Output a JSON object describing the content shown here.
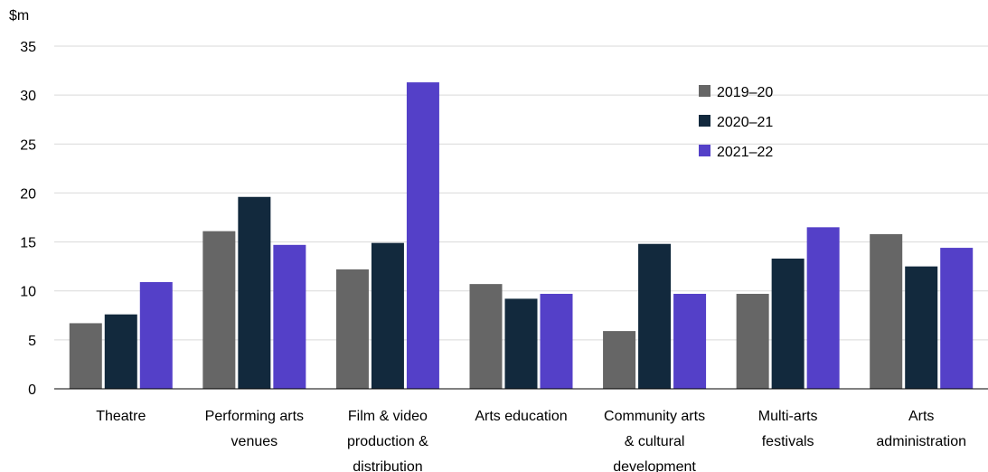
{
  "chart_data": {
    "type": "bar",
    "ylabel": "$m",
    "ylim": [
      0,
      35
    ],
    "yticks": [
      0,
      5,
      10,
      15,
      20,
      25,
      30,
      35
    ],
    "grid": true,
    "legend_position": "top-right",
    "categories": [
      [
        "Theatre"
      ],
      [
        "Performing arts",
        "venues"
      ],
      [
        "Film & video",
        "production &",
        "distribution"
      ],
      [
        "Arts education"
      ],
      [
        "Community arts",
        "& cultural",
        "development"
      ],
      [
        "Multi-arts",
        "festivals"
      ],
      [
        "Arts",
        "administration"
      ]
    ],
    "series": [
      {
        "name": "2019–20",
        "color": "#666666",
        "values": [
          6.7,
          16.1,
          12.2,
          10.7,
          5.9,
          9.7,
          15.8
        ]
      },
      {
        "name": "2020–21",
        "color": "#12293d",
        "values": [
          7.6,
          19.6,
          14.9,
          9.2,
          14.8,
          13.3,
          12.5
        ]
      },
      {
        "name": "2021–22",
        "color": "#5440c8",
        "values": [
          10.9,
          14.7,
          31.3,
          9.7,
          9.7,
          16.5,
          14.4
        ]
      }
    ]
  }
}
